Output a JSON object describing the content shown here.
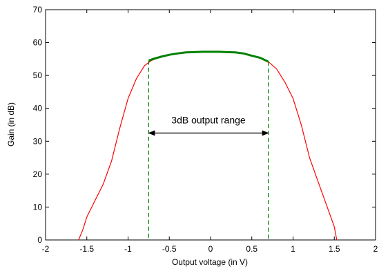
{
  "chart_data": {
    "type": "line",
    "title": "",
    "xlabel": "Output voltage (in V)",
    "ylabel": "Gain (in dB)",
    "xlim": [
      -2,
      2
    ],
    "ylim": [
      0,
      70
    ],
    "xticks": [
      -2,
      -1.5,
      -1,
      -0.5,
      0,
      0.5,
      1,
      1.5,
      2
    ],
    "xtick_labels": [
      "-2",
      "-1.5",
      "-1",
      "-0.5",
      "0",
      "0.5",
      "1",
      "1.5",
      "2"
    ],
    "yticks": [
      0,
      10,
      20,
      30,
      40,
      50,
      60,
      70
    ],
    "ytick_labels": [
      "0",
      "10",
      "20",
      "30",
      "40",
      "50",
      "60",
      "70"
    ],
    "grid": false,
    "colors": {
      "full_curve": "#ff0000",
      "range_curve": "#008000",
      "boundary": "#008000",
      "arrow": "#000000"
    },
    "series": [
      {
        "x": [
          -1.6,
          -1.55,
          -1.5,
          -1.4,
          -1.3,
          -1.2,
          -1.1,
          -1.0,
          -0.9,
          -0.8,
          -0.72,
          -0.6,
          -0.5,
          -0.4,
          -0.3,
          -0.2,
          -0.1,
          0,
          0.1,
          0.2,
          0.3,
          0.4,
          0.5,
          0.6,
          0.7,
          0.8,
          0.9,
          1.0,
          1.1,
          1.2,
          1.3,
          1.4,
          1.5,
          1.53
        ],
        "y": [
          0,
          3,
          7,
          12,
          17,
          24,
          34,
          43,
          49,
          53,
          54.5,
          55.7,
          56.3,
          56.7,
          57.0,
          57.1,
          57.2,
          57.2,
          57.2,
          57.1,
          57.0,
          56.7,
          56.0,
          55.4,
          54.2,
          52,
          48,
          43,
          35,
          25,
          18,
          11,
          4,
          0
        ]
      },
      {
        "x": [
          -0.75,
          -0.7,
          -0.6,
          -0.5,
          -0.4,
          -0.3,
          -0.2,
          -0.1,
          0,
          0.1,
          0.2,
          0.3,
          0.4,
          0.5,
          0.6,
          0.7
        ],
        "y": [
          54.5,
          55.0,
          55.7,
          56.3,
          56.7,
          57.0,
          57.1,
          57.2,
          57.2,
          57.2,
          57.1,
          57.0,
          56.7,
          56.0,
          55.4,
          54.2
        ]
      }
    ],
    "boundaries": [
      {
        "x": -0.75,
        "y_top": 54.5
      },
      {
        "x": 0.7,
        "y_top": 54.2
      }
    ],
    "annotation": {
      "text": "3dB output range",
      "arrow_from_x": -0.75,
      "arrow_to_x": 0.7,
      "arrow_y": 32.5
    }
  }
}
